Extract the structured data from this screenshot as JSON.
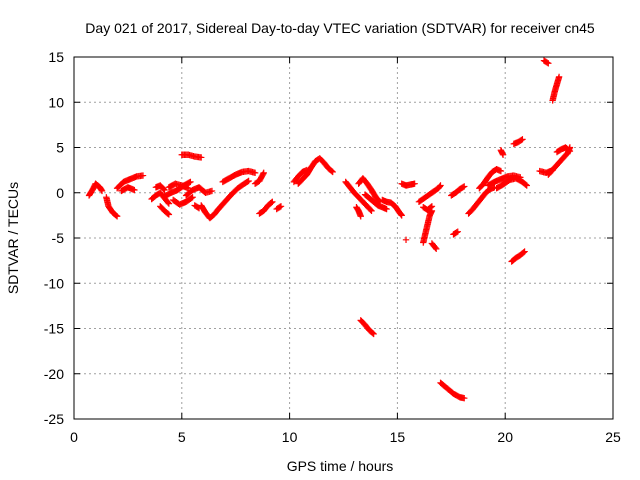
{
  "chart_data": {
    "type": "scatter",
    "title": "Day 021 of 2017, Sidereal Day-to-day VTEC variation (SDTVAR) for receiver cn45",
    "xlabel": "GPS time / hours",
    "ylabel": "SDTVAR / TECUs",
    "xlim": [
      0,
      25
    ],
    "ylim": [
      -25,
      15
    ],
    "xticks": [
      "0",
      "5",
      "10",
      "15",
      "20",
      "25"
    ],
    "yticks": [
      "15",
      "10",
      "5",
      "0",
      "-5",
      "-10",
      "-15",
      "-20",
      "-25"
    ],
    "grid": true,
    "marker": "+",
    "color": "#ff0000",
    "series": [
      {
        "name": "cn45",
        "segments": [
          [
            [
              0.7,
              -0.3
            ],
            [
              0.9,
              0.5
            ],
            [
              1.0,
              1.0
            ],
            [
              1.2,
              0.6
            ],
            [
              1.3,
              0.2
            ]
          ],
          [
            [
              1.5,
              -0.5
            ],
            [
              1.6,
              -1.5
            ],
            [
              1.8,
              -2.2
            ],
            [
              2.0,
              -2.6
            ]
          ],
          [
            [
              2.0,
              0.5
            ],
            [
              2.3,
              1.2
            ],
            [
              2.6,
              1.5
            ],
            [
              2.9,
              1.8
            ],
            [
              3.2,
              1.9
            ]
          ],
          [
            [
              2.2,
              0.2
            ],
            [
              2.5,
              0.6
            ],
            [
              2.8,
              0.3
            ]
          ],
          [
            [
              3.6,
              -0.7
            ],
            [
              3.8,
              -0.3
            ],
            [
              4.0,
              0.0
            ],
            [
              4.2,
              -0.6
            ],
            [
              4.4,
              -1.2
            ]
          ],
          [
            [
              3.8,
              0.6
            ],
            [
              4.0,
              0.8
            ],
            [
              4.2,
              0.3
            ]
          ],
          [
            [
              4.0,
              -1.5
            ],
            [
              4.2,
              -2.0
            ],
            [
              4.4,
              -2.4
            ]
          ],
          [
            [
              4.2,
              -0.4
            ],
            [
              4.5,
              0.0
            ],
            [
              4.8,
              0.3
            ],
            [
              5.1,
              0.8
            ],
            [
              5.4,
              1.2
            ]
          ],
          [
            [
              4.4,
              0.6
            ],
            [
              4.7,
              1.0
            ],
            [
              5.0,
              0.8
            ],
            [
              5.3,
              0.5
            ]
          ],
          [
            [
              4.6,
              -0.8
            ],
            [
              4.9,
              -1.3
            ],
            [
              5.2,
              -1.0
            ],
            [
              5.5,
              -0.5
            ]
          ],
          [
            [
              5.0,
              4.2
            ],
            [
              5.3,
              4.2
            ],
            [
              5.6,
              4.0
            ],
            [
              5.9,
              3.9
            ]
          ],
          [
            [
              5.2,
              -0.3
            ],
            [
              5.5,
              0.3
            ],
            [
              5.8,
              0.6
            ],
            [
              6.1,
              0.0
            ],
            [
              6.4,
              0.2
            ]
          ],
          [
            [
              5.6,
              -1.4
            ],
            [
              5.8,
              -1.7
            ]
          ],
          [
            [
              5.9,
              -1.4
            ],
            [
              6.1,
              -2.2
            ],
            [
              6.3,
              -2.8
            ],
            [
              6.5,
              -2.4
            ],
            [
              6.7,
              -1.8
            ]
          ],
          [
            [
              6.7,
              -1.8
            ],
            [
              7.0,
              -1.0
            ],
            [
              7.3,
              -0.2
            ],
            [
              7.6,
              0.5
            ],
            [
              7.9,
              1.0
            ],
            [
              8.1,
              1.3
            ]
          ],
          [
            [
              6.9,
              1.2
            ],
            [
              7.2,
              1.6
            ],
            [
              7.5,
              2.0
            ],
            [
              7.8,
              2.3
            ],
            [
              8.1,
              2.4
            ],
            [
              8.4,
              2.2
            ]
          ],
          [
            [
              8.4,
              1.0
            ],
            [
              8.6,
              1.3
            ],
            [
              8.8,
              2.2
            ]
          ],
          [
            [
              8.6,
              -2.3
            ],
            [
              8.8,
              -2.0
            ],
            [
              9.0,
              -1.4
            ],
            [
              9.2,
              -1.0
            ]
          ],
          [
            [
              9.4,
              -1.8
            ],
            [
              9.6,
              -1.5
            ]
          ],
          [
            [
              10.2,
              1.2
            ],
            [
              10.4,
              1.8
            ],
            [
              10.6,
              2.3
            ],
            [
              10.8,
              2.5
            ]
          ],
          [
            [
              10.4,
              1.0
            ],
            [
              10.6,
              1.5
            ],
            [
              10.8,
              2.0
            ],
            [
              11.0,
              2.8
            ],
            [
              11.2,
              3.5
            ],
            [
              11.4,
              3.8
            ],
            [
              11.6,
              3.3
            ],
            [
              11.8,
              2.7
            ],
            [
              12.0,
              2.3
            ]
          ],
          [
            [
              12.6,
              1.2
            ],
            [
              12.8,
              0.6
            ],
            [
              13.0,
              0.0
            ],
            [
              13.2,
              -0.5
            ],
            [
              13.4,
              -1.0
            ],
            [
              13.6,
              -1.5
            ],
            [
              13.8,
              -2.0
            ]
          ],
          [
            [
              13.1,
              -1.6
            ],
            [
              13.2,
              -2.0
            ],
            [
              13.3,
              -2.6
            ]
          ],
          [
            [
              13.2,
              1.0
            ],
            [
              13.4,
              1.6
            ],
            [
              13.6,
              1.0
            ],
            [
              13.8,
              0.3
            ],
            [
              14.0,
              -0.5
            ],
            [
              14.2,
              -1.0
            ]
          ],
          [
            [
              13.5,
              -0.2
            ],
            [
              13.7,
              -0.6
            ],
            [
              13.9,
              -1.0
            ],
            [
              14.1,
              -1.4
            ],
            [
              14.3,
              -1.6
            ],
            [
              14.5,
              -1.8
            ]
          ],
          [
            [
              14.3,
              -0.8
            ],
            [
              14.5,
              -1.0
            ],
            [
              14.7,
              -1.1
            ],
            [
              14.9,
              -1.5
            ],
            [
              15.1,
              -2.2
            ],
            [
              15.2,
              -2.5
            ]
          ],
          [
            [
              13.3,
              -14.1
            ],
            [
              13.5,
              -14.6
            ],
            [
              13.7,
              -15.2
            ],
            [
              13.9,
              -15.6
            ]
          ],
          [
            [
              15.2,
              1.0
            ],
            [
              15.4,
              0.8
            ],
            [
              15.6,
              0.9
            ],
            [
              15.8,
              1.0
            ]
          ],
          [
            [
              15.4,
              -5.2
            ]
          ],
          [
            [
              16.0,
              -1.0
            ],
            [
              16.3,
              -0.5
            ],
            [
              16.6,
              0.0
            ],
            [
              16.9,
              0.5
            ],
            [
              17.0,
              0.8
            ]
          ],
          [
            [
              16.2,
              -1.6
            ],
            [
              16.4,
              -1.9
            ],
            [
              16.6,
              -1.5
            ]
          ],
          [
            [
              16.2,
              -5.5
            ],
            [
              16.3,
              -4.5
            ],
            [
              16.4,
              -3.5
            ],
            [
              16.5,
              -2.5
            ],
            [
              16.6,
              -2.0
            ]
          ],
          [
            [
              16.6,
              -5.6
            ],
            [
              16.8,
              -6.2
            ]
          ],
          [
            [
              17.0,
              -21.0
            ],
            [
              17.3,
              -21.6
            ],
            [
              17.6,
              -22.2
            ],
            [
              17.9,
              -22.6
            ],
            [
              18.1,
              -22.7
            ]
          ],
          [
            [
              17.5,
              -0.3
            ],
            [
              17.7,
              0.0
            ],
            [
              17.9,
              0.4
            ],
            [
              18.1,
              0.7
            ]
          ],
          [
            [
              17.6,
              -4.6
            ],
            [
              17.8,
              -4.3
            ]
          ],
          [
            [
              18.3,
              -2.3
            ],
            [
              18.5,
              -1.8
            ],
            [
              18.7,
              -1.2
            ],
            [
              18.9,
              -0.6
            ],
            [
              19.1,
              0.0
            ],
            [
              19.3,
              0.4
            ],
            [
              19.5,
              0.6
            ]
          ],
          [
            [
              18.8,
              0.5
            ],
            [
              19.0,
              1.0
            ],
            [
              19.2,
              1.7
            ],
            [
              19.4,
              2.3
            ],
            [
              19.6,
              2.6
            ],
            [
              19.8,
              2.4
            ]
          ],
          [
            [
              19.2,
              0.8
            ],
            [
              19.5,
              1.2
            ],
            [
              19.8,
              1.5
            ],
            [
              20.1,
              1.8
            ],
            [
              20.4,
              1.9
            ],
            [
              20.7,
              1.7
            ]
          ],
          [
            [
              19.6,
              0.5
            ],
            [
              19.9,
              0.9
            ],
            [
              20.2,
              1.4
            ],
            [
              20.5,
              1.6
            ],
            [
              20.8,
              1.2
            ],
            [
              21.0,
              0.8
            ]
          ],
          [
            [
              19.8,
              4.7
            ],
            [
              19.9,
              4.2
            ]
          ],
          [
            [
              20.4,
              5.4
            ],
            [
              20.6,
              5.6
            ],
            [
              20.8,
              5.9
            ]
          ],
          [
            [
              20.3,
              -7.6
            ],
            [
              20.5,
              -7.2
            ],
            [
              20.7,
              -6.9
            ],
            [
              20.9,
              -6.5
            ]
          ],
          [
            [
              21.6,
              2.4
            ],
            [
              21.9,
              2.2
            ],
            [
              22.2,
              2.5
            ]
          ],
          [
            [
              21.8,
              14.6
            ],
            [
              22.0,
              14.3
            ]
          ],
          [
            [
              22.2,
              10.2
            ],
            [
              22.3,
              11.2
            ],
            [
              22.4,
              12.0
            ],
            [
              22.5,
              12.8
            ]
          ],
          [
            [
              22.0,
              2.0
            ],
            [
              22.3,
              2.8
            ],
            [
              22.6,
              3.6
            ],
            [
              22.9,
              4.4
            ],
            [
              23.0,
              5.0
            ]
          ],
          [
            [
              22.4,
              4.5
            ],
            [
              22.6,
              4.8
            ],
            [
              22.8,
              5.0
            ],
            [
              23.0,
              4.6
            ]
          ]
        ]
      }
    ]
  }
}
